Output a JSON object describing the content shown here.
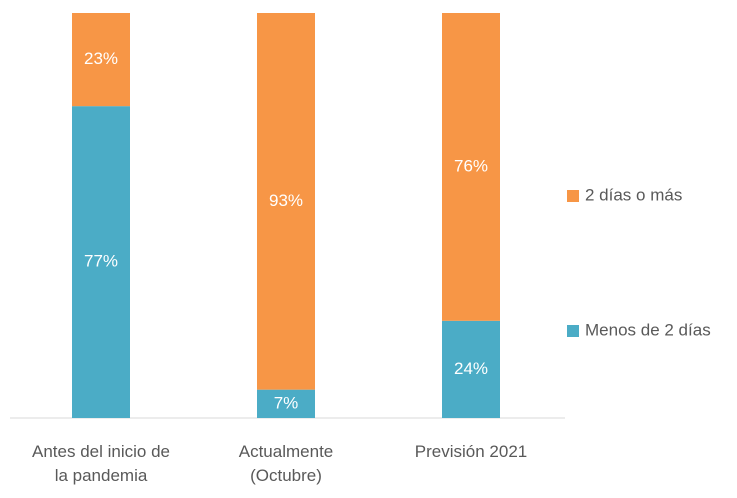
{
  "chart_data": {
    "type": "stacked_bar",
    "categories": [
      [
        "Antes del inicio de",
        "la pandemia"
      ],
      [
        "Actualmente",
        "(Octubre)"
      ],
      [
        "Previsión 2021"
      ]
    ],
    "series": [
      {
        "name": "Menos de 2 días",
        "color": "#4bacc6",
        "values": [
          77,
          7,
          24
        ],
        "value_labels": [
          "77%",
          "7%",
          "24%"
        ]
      },
      {
        "name": "2 días o más",
        "color": "#f79646",
        "values": [
          23,
          93,
          76
        ],
        "value_labels": [
          "23%",
          "93%",
          "76%"
        ]
      }
    ],
    "ylim": [
      0,
      100
    ],
    "legend": "right"
  }
}
